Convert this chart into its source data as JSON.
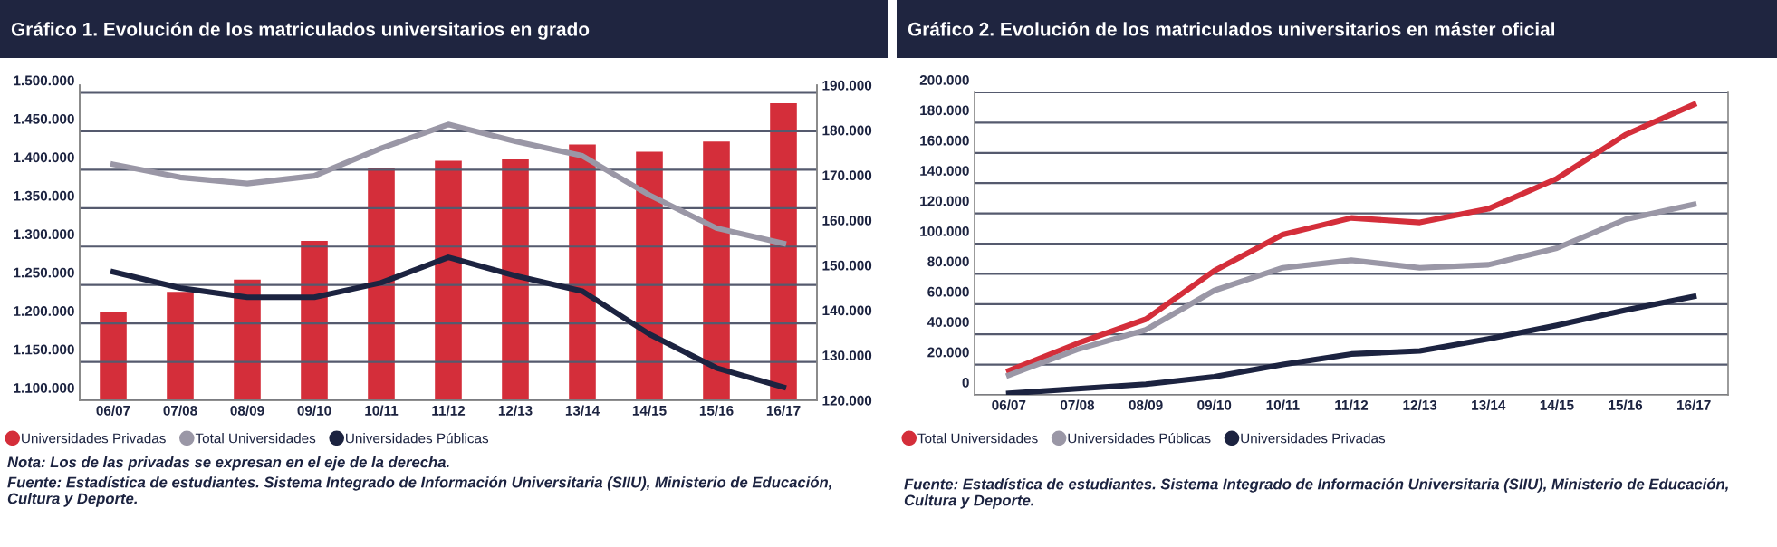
{
  "chart_data": [
    {
      "type": "bar",
      "title": "Gráfico 1. Evolución de los matriculados universitarios en grado",
      "categories": [
        "06/07",
        "07/08",
        "08/09",
        "09/10",
        "10/11",
        "11/12",
        "12/13",
        "13/14",
        "14/15",
        "15/16",
        "16/17"
      ],
      "series": [
        {
          "name": "Universidades Privadas",
          "type": "bar",
          "axis": "y2",
          "color": "#d42e3a",
          "values": [
            139700,
            144100,
            146800,
            155400,
            171500,
            173200,
            173500,
            176800,
            175200,
            177500,
            186000
          ]
        },
        {
          "name": "Total Universidades",
          "type": "line",
          "color": "#9a97a6",
          "values": [
            1407000,
            1390000,
            1382000,
            1392000,
            1428000,
            1459000,
            1437000,
            1418000,
            1367000,
            1324000,
            1304000
          ]
        },
        {
          "name": "Universidades Públicas",
          "type": "line",
          "color": "#1c2340",
          "values": [
            1267000,
            1246000,
            1234000,
            1234000,
            1253000,
            1286000,
            1262000,
            1242000,
            1186000,
            1142000,
            1117000
          ]
        }
      ],
      "ylim": [
        1100000,
        1510000
      ],
      "yticks": [
        {
          "value": 1100000,
          "label": "1.100.000"
        },
        {
          "value": 1150000,
          "label": "1.150.000"
        },
        {
          "value": 1200000,
          "label": "1.200.000"
        },
        {
          "value": 1250000,
          "label": "1.250.000"
        },
        {
          "value": 1300000,
          "label": "1.300.000"
        },
        {
          "value": 1350000,
          "label": "1.350.000"
        },
        {
          "value": 1400000,
          "label": "1.400.000"
        },
        {
          "value": 1450000,
          "label": "1.450.000"
        },
        {
          "value": 1500000,
          "label": "1.500.000"
        }
      ],
      "y2lim": [
        120000,
        190000
      ],
      "y2ticks": [
        {
          "value": 120000,
          "label": "120.000"
        },
        {
          "value": 130000,
          "label": "130.000"
        },
        {
          "value": 140000,
          "label": "140.000"
        },
        {
          "value": 150000,
          "label": "150.000"
        },
        {
          "value": 160000,
          "label": "160.000"
        },
        {
          "value": 170000,
          "label": "170.000"
        },
        {
          "value": 180000,
          "label": "180.000"
        },
        {
          "value": 190000,
          "label": "190.000"
        }
      ],
      "grid": "y",
      "legend": "bottom",
      "marker": "none",
      "annotations": [
        "Nota: Los de las privadas se expresan en el eje de la derecha.",
        "Fuente: Estadística de estudiantes. Sistema Integrado de Información Universitaria (SIIU), Ministerio de Educación, Cultura y Deporte."
      ]
    },
    {
      "type": "line",
      "title": "Gráfico 2. Evolución de los matriculados universitarios en máster oficial",
      "categories": [
        "06/07",
        "07/08",
        "08/09",
        "09/10",
        "10/11",
        "11/12",
        "12/13",
        "13/14",
        "14/15",
        "15/16",
        "16/17"
      ],
      "series": [
        {
          "name": "Total Universidades",
          "color": "#d42e3a",
          "values": [
            16000,
            34000,
            50000,
            82000,
            106000,
            117000,
            114000,
            123000,
            143000,
            172000,
            192000
          ]
        },
        {
          "name": "Universidades Públicas",
          "color": "#9a97a6",
          "values": [
            13000,
            30000,
            43000,
            69000,
            84000,
            89000,
            84000,
            86000,
            97000,
            116000,
            126000
          ]
        },
        {
          "name": "Universidades Privadas",
          "color": "#1c2340",
          "values": [
            1000,
            4000,
            7000,
            12000,
            20000,
            27000,
            29000,
            37000,
            46000,
            56000,
            65000
          ]
        }
      ],
      "ylim": [
        0,
        200000
      ],
      "yticks": [
        0,
        {
          "value": 20000,
          "label": "20.000"
        },
        {
          "value": 40000,
          "label": "40.000"
        },
        {
          "value": 60000,
          "label": "60.000"
        },
        {
          "value": 80000,
          "label": "80.000"
        },
        {
          "value": 100000,
          "label": "100.000"
        },
        {
          "value": 120000,
          "label": "120.000"
        },
        {
          "value": 140000,
          "label": "140.000"
        },
        {
          "value": 160000,
          "label": "160.000"
        },
        {
          "value": 180000,
          "label": "180.000"
        },
        {
          "value": 200000,
          "label": "200.000"
        }
      ],
      "grid": "y",
      "legend": "bottom",
      "marker": "none",
      "annotations": [
        "Fuente: Estadística de estudiantes. Sistema Integrado de Información Universitaria (SIIU), Ministerio de Educación, Cultura y Deporte."
      ]
    }
  ]
}
